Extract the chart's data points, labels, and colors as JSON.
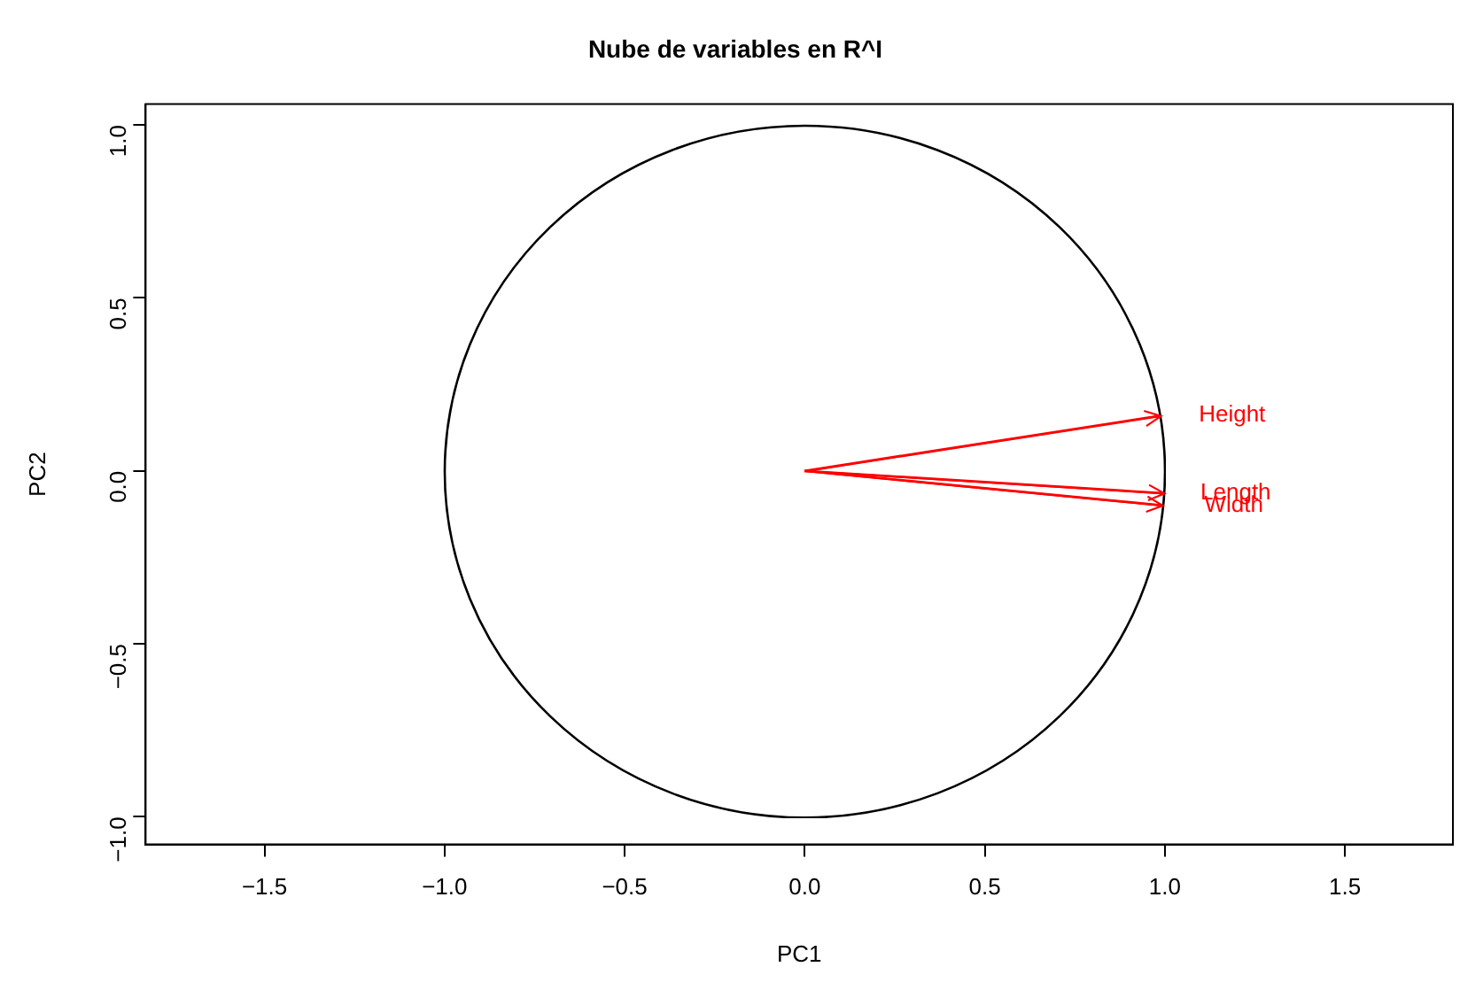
{
  "chart_data": {
    "type": "line",
    "title": "Nube de variables en R^I",
    "xlabel": "PC1",
    "ylabel": "PC2",
    "xlim": [
      -1.83,
      1.8
    ],
    "ylim": [
      -1.08,
      1.06
    ],
    "xticks": [
      {
        "value": -1.5,
        "label": "−1.5"
      },
      {
        "value": -1,
        "label": "−1.0"
      },
      {
        "value": -0.5,
        "label": "−0.5"
      },
      {
        "value": 0,
        "label": "0.0"
      },
      {
        "value": 0.5,
        "label": "0.5"
      },
      {
        "value": 1,
        "label": "1.0"
      },
      {
        "value": 1.5,
        "label": "1.5"
      }
    ],
    "yticks": [
      {
        "value": -1,
        "label": "−1.0"
      },
      {
        "value": -0.5,
        "label": "−0.5"
      },
      {
        "value": 0,
        "label": "0.0"
      },
      {
        "value": 0.5,
        "label": "0.5"
      },
      {
        "value": 1,
        "label": "1.0"
      }
    ],
    "grid": false,
    "legend": "right",
    "marker": "none",
    "line_style": "solid",
    "series": [
      {
        "name": "Height",
        "color": "#ff0000",
        "x": [
          0,
          0.99
        ],
        "values": [
          0,
          0.16
        ]
      },
      {
        "name": "Length",
        "color": "#ff0000",
        "x": [
          0,
          1.0
        ],
        "values": [
          0,
          -0.065
        ]
      },
      {
        "name": "Width",
        "color": "#ff0000",
        "x": [
          0,
          0.995
        ],
        "values": [
          0,
          -0.1
        ]
      }
    ]
  }
}
